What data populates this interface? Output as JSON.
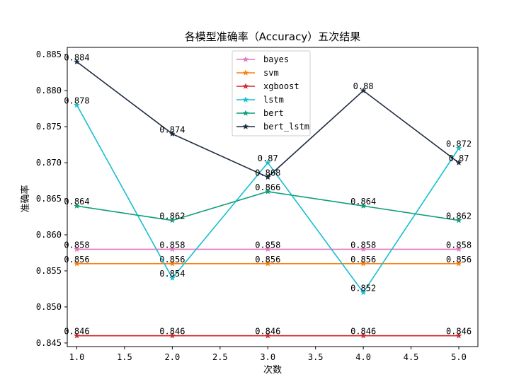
{
  "chart_data": {
    "type": "line",
    "title": "各模型准确率（Accuracy）五次结果",
    "xlabel": "次数",
    "ylabel": "准确率",
    "x": [
      1.0,
      2.0,
      3.0,
      4.0,
      5.0
    ],
    "xlim": [
      0.9,
      5.2
    ],
    "ylim": [
      0.8445,
      0.886
    ],
    "xticks": [
      "1.0",
      "1.5",
      "2.0",
      "2.5",
      "3.0",
      "3.5",
      "4.0",
      "4.5",
      "5.0"
    ],
    "yticks": [
      "0.845",
      "0.850",
      "0.855",
      "0.860",
      "0.865",
      "0.870",
      "0.875",
      "0.880",
      "0.885"
    ],
    "grid": false,
    "legend_position": "upper-center",
    "marker": "star",
    "series": [
      {
        "name": "bayes",
        "color": "#e377c2",
        "values": [
          0.858,
          0.858,
          0.858,
          0.858,
          0.858
        ],
        "labels": [
          "0.858",
          "0.858",
          "0.858",
          "0.858",
          "0.858"
        ]
      },
      {
        "name": "svm",
        "color": "#ff7f0e",
        "values": [
          0.856,
          0.856,
          0.856,
          0.856,
          0.856
        ],
        "labels": [
          "0.856",
          "0.856",
          "0.856",
          "0.856",
          "0.856"
        ]
      },
      {
        "name": "xgboost",
        "color": "#d62728",
        "values": [
          0.846,
          0.846,
          0.846,
          0.846,
          0.846
        ],
        "labels": [
          "0.846",
          "0.846",
          "0.846",
          "0.846",
          "0.846"
        ]
      },
      {
        "name": "lstm",
        "color": "#17becf",
        "values": [
          0.878,
          0.854,
          0.87,
          0.852,
          0.872
        ],
        "labels": [
          "0.878",
          "0.854",
          "0.87",
          "0.852",
          "0.872"
        ]
      },
      {
        "name": "bert",
        "color": "#0e9e79",
        "values": [
          0.864,
          0.862,
          0.866,
          0.864,
          0.862
        ],
        "labels": [
          "0.864",
          "0.862",
          "0.866",
          "0.864",
          "0.862"
        ]
      },
      {
        "name": "bert_lstm",
        "color": "#1f2b40",
        "values": [
          0.884,
          0.874,
          0.868,
          0.88,
          0.87
        ],
        "labels": [
          "0.884",
          "0.874",
          "0.868",
          "0.88",
          "0.87"
        ]
      }
    ]
  }
}
